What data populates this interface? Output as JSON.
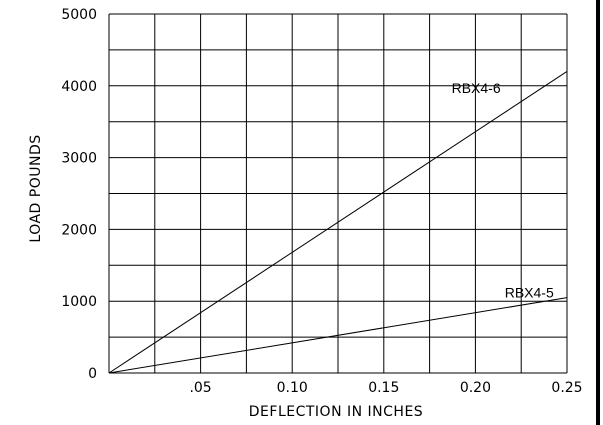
{
  "chart_data": {
    "type": "line",
    "title": "",
    "xlabel": "DEFLECTION IN INCHES",
    "ylabel": "LOAD POUNDS",
    "xlim": [
      0,
      0.25
    ],
    "ylim": [
      0,
      5000
    ],
    "grid": true,
    "x_gridlines": 10,
    "y_gridlines": 10,
    "x_ticks": [
      {
        "value": 0.05,
        "label": ".05"
      },
      {
        "value": 0.1,
        "label": "0.10"
      },
      {
        "value": 0.15,
        "label": "0.15"
      },
      {
        "value": 0.2,
        "label": "0.20"
      },
      {
        "value": 0.25,
        "label": "0.25"
      }
    ],
    "y_ticks": [
      {
        "value": 0,
        "label": "0"
      },
      {
        "value": 1000,
        "label": "1000"
      },
      {
        "value": 2000,
        "label": "2000"
      },
      {
        "value": 3000,
        "label": "3000"
      },
      {
        "value": 4000,
        "label": "4000"
      },
      {
        "value": 5000,
        "label": "5000"
      }
    ],
    "series": [
      {
        "name": "RBX4-6",
        "x": [
          0,
          0.25
        ],
        "y": [
          0,
          4200
        ],
        "label_at": {
          "x": 0.187,
          "y": 3900
        }
      },
      {
        "name": "RBX4-5",
        "x": [
          0,
          0.25
        ],
        "y": [
          0,
          1050
        ],
        "label_at": {
          "x": 0.216,
          "y": 1050
        }
      }
    ]
  }
}
